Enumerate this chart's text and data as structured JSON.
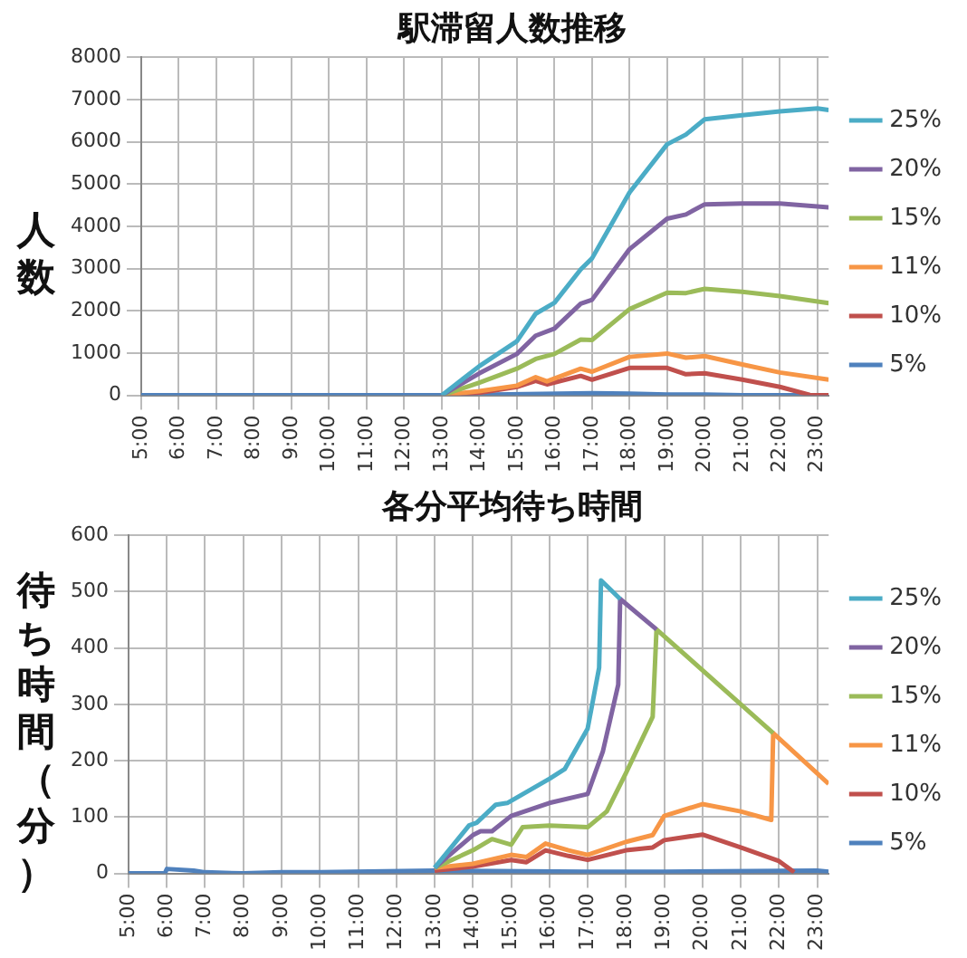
{
  "chart_data": [
    {
      "type": "line",
      "title": "駅滞留人数推移",
      "ylabel": "人数",
      "legend": "right",
      "grid": true,
      "marker": "none",
      "line_style": "solid",
      "xlim": [
        5,
        23.3
      ],
      "xticks": [
        {
          "value": 5,
          "label": "5:00"
        },
        {
          "value": 6,
          "label": "6:00"
        },
        {
          "value": 7,
          "label": "7:00"
        },
        {
          "value": 8,
          "label": "8:00"
        },
        {
          "value": 9,
          "label": "9:00"
        },
        {
          "value": 10,
          "label": "10:00"
        },
        {
          "value": 11,
          "label": "11:00"
        },
        {
          "value": 12,
          "label": "12:00"
        },
        {
          "value": 13,
          "label": "13:00"
        },
        {
          "value": 14,
          "label": "14:00"
        },
        {
          "value": 15,
          "label": "15:00"
        },
        {
          "value": 16,
          "label": "16:00"
        },
        {
          "value": 17,
          "label": "17:00"
        },
        {
          "value": 18,
          "label": "18:00"
        },
        {
          "value": 19,
          "label": "19:00"
        },
        {
          "value": 20,
          "label": "20:00"
        },
        {
          "value": 21,
          "label": "21:00"
        },
        {
          "value": 22,
          "label": "22:00"
        },
        {
          "value": 23,
          "label": "23:00"
        }
      ],
      "ylim": [
        0,
        8000
      ],
      "yticks": [
        0,
        1000,
        2000,
        3000,
        4000,
        5000,
        6000,
        7000,
        8000
      ],
      "series": [
        {
          "name": "25%",
          "color": "#4bacc6",
          "x": [
            13,
            14,
            15,
            15.5,
            16,
            16.7,
            17,
            18,
            19,
            19.5,
            20,
            21,
            22,
            23,
            23.3
          ],
          "values": [
            0,
            690,
            1280,
            1930,
            2190,
            2980,
            3240,
            4800,
            5940,
            6170,
            6530,
            6630,
            6720,
            6790,
            6750
          ]
        },
        {
          "name": "20%",
          "color": "#8064a2",
          "x": [
            13,
            14,
            15,
            15.5,
            16,
            16.7,
            17,
            18,
            19,
            19.5,
            20,
            21,
            22,
            23.3
          ],
          "values": [
            0,
            520,
            980,
            1410,
            1580,
            2170,
            2260,
            3460,
            4180,
            4280,
            4520,
            4540,
            4540,
            4450
          ]
        },
        {
          "name": "15%",
          "color": "#9bbb59",
          "x": [
            13,
            14,
            15,
            15.5,
            16,
            16.7,
            17,
            18,
            19,
            19.5,
            20,
            21,
            22,
            23.3
          ],
          "values": [
            0,
            300,
            630,
            860,
            980,
            1320,
            1310,
            2040,
            2430,
            2420,
            2520,
            2450,
            2350,
            2180
          ]
        },
        {
          "name": "11%",
          "color": "#f79646",
          "x": [
            13,
            14,
            15,
            15.5,
            15.8,
            16.7,
            17,
            18,
            19,
            19.5,
            20,
            21,
            22,
            23.3
          ],
          "values": [
            0,
            100,
            230,
            430,
            330,
            630,
            560,
            910,
            990,
            890,
            930,
            730,
            540,
            370
          ]
        },
        {
          "name": "10%",
          "color": "#c0504d",
          "x": [
            13,
            14,
            15,
            15.5,
            15.8,
            16.7,
            17,
            18,
            19,
            19.5,
            20,
            21,
            22,
            22.8,
            23.3
          ],
          "values": [
            0,
            60,
            200,
            340,
            260,
            460,
            370,
            650,
            650,
            500,
            520,
            370,
            200,
            10,
            0
          ]
        },
        {
          "name": "5%",
          "color": "#4f81bd",
          "x": [
            5,
            13,
            17,
            18,
            19,
            20,
            21,
            23.3
          ],
          "values": [
            0,
            0,
            50,
            40,
            20,
            20,
            0,
            0
          ]
        }
      ]
    },
    {
      "type": "line",
      "title": "各分平均待ち時間",
      "ylabel": "待ち時間（分）",
      "legend": "right",
      "grid": true,
      "marker": "none",
      "line_style": "solid",
      "xlim": [
        5,
        23.3
      ],
      "xticks": [
        {
          "value": 5,
          "label": "5:00"
        },
        {
          "value": 6,
          "label": "6:00"
        },
        {
          "value": 7,
          "label": "7:00"
        },
        {
          "value": 8,
          "label": "8:00"
        },
        {
          "value": 9,
          "label": "9:00"
        },
        {
          "value": 10,
          "label": "10:00"
        },
        {
          "value": 11,
          "label": "11:00"
        },
        {
          "value": 12,
          "label": "12:00"
        },
        {
          "value": 13,
          "label": "13:00"
        },
        {
          "value": 14,
          "label": "14:00"
        },
        {
          "value": 15,
          "label": "15:00"
        },
        {
          "value": 16,
          "label": "16:00"
        },
        {
          "value": 17,
          "label": "17:00"
        },
        {
          "value": 18,
          "label": "18:00"
        },
        {
          "value": 19,
          "label": "19:00"
        },
        {
          "value": 20,
          "label": "20:00"
        },
        {
          "value": 21,
          "label": "21:00"
        },
        {
          "value": 22,
          "label": "22:00"
        },
        {
          "value": 23,
          "label": "23:00"
        }
      ],
      "ylim": [
        0,
        600
      ],
      "yticks": [
        0,
        100,
        200,
        300,
        400,
        500,
        600
      ],
      "series": [
        {
          "name": "25%",
          "color": "#4bacc6",
          "x": [
            13,
            13.9,
            14.1,
            14.6,
            14.9,
            16,
            16.4,
            17,
            17.3,
            17.35,
            17.85
          ],
          "values": [
            10,
            85,
            90,
            122,
            125,
            168,
            185,
            257,
            365,
            520,
            487
          ]
        },
        {
          "name": "20%",
          "color": "#8064a2",
          "x": [
            13,
            14,
            14.2,
            14.5,
            15,
            16,
            17,
            17.4,
            17.8,
            17.85,
            18.8
          ],
          "values": [
            10,
            68,
            75,
            75,
            102,
            125,
            141,
            217,
            335,
            487,
            433
          ]
        },
        {
          "name": "15%",
          "color": "#9bbb59",
          "x": [
            13,
            14,
            14.5,
            15,
            15.3,
            16,
            17,
            17.5,
            18,
            18.7,
            18.8,
            21.85
          ],
          "values": [
            10,
            41,
            61,
            51,
            82,
            85,
            82,
            110,
            178,
            278,
            433,
            249
          ]
        },
        {
          "name": "11%",
          "color": "#f79646",
          "x": [
            13,
            14,
            15,
            15.4,
            15.9,
            16.5,
            17,
            18,
            18.7,
            19,
            20,
            21,
            21.8,
            21.85,
            23.3
          ],
          "values": [
            10,
            17,
            33,
            29,
            53,
            41,
            33,
            56,
            68,
            102,
            123,
            110,
            95,
            249,
            159
          ]
        },
        {
          "name": "10%",
          "color": "#c0504d",
          "x": [
            13,
            14,
            15,
            15.4,
            15.9,
            16.5,
            17,
            18,
            18.7,
            19,
            20,
            21,
            22,
            22.4
          ],
          "values": [
            5,
            12,
            24,
            20,
            41,
            31,
            24,
            41,
            46,
            59,
            69,
            46,
            22,
            2
          ]
        },
        {
          "name": "5%",
          "color": "#4f81bd",
          "x": [
            5,
            5.95,
            6,
            6.7,
            7,
            8,
            9,
            10,
            13,
            17,
            19,
            23,
            23.3
          ],
          "values": [
            0,
            0,
            8,
            5,
            2,
            0,
            2,
            2,
            5,
            3,
            3,
            5,
            3
          ]
        }
      ]
    }
  ]
}
